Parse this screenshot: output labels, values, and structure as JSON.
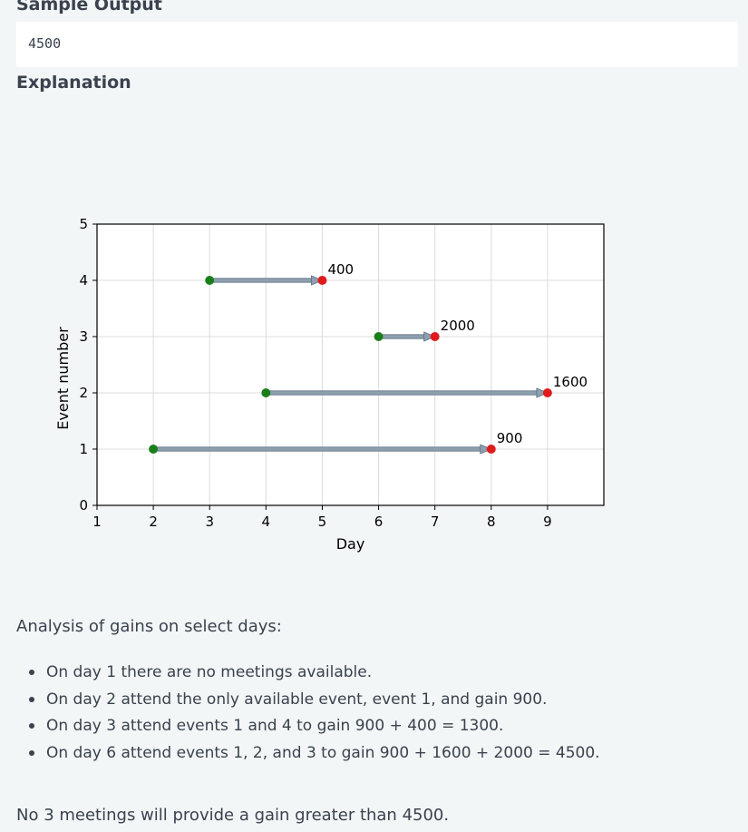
{
  "sample_output": {
    "heading": "Sample Output",
    "value": "4500"
  },
  "explanation": {
    "heading": "Explanation"
  },
  "chart_data": {
    "type": "scatter",
    "xlabel": "Day",
    "ylabel": "Event number",
    "xlim": [
      1,
      10
    ],
    "ylim": [
      0,
      5
    ],
    "xticks": [
      1,
      2,
      3,
      4,
      5,
      6,
      7,
      8,
      9
    ],
    "yticks": [
      0,
      1,
      2,
      3,
      4,
      5
    ],
    "grid": true,
    "events": [
      {
        "event": 1,
        "start": 2,
        "end": 8,
        "label": "900"
      },
      {
        "event": 2,
        "start": 4,
        "end": 9,
        "label": "1600"
      },
      {
        "event": 3,
        "start": 6,
        "end": 7,
        "label": "2000"
      },
      {
        "event": 4,
        "start": 3,
        "end": 5,
        "label": "400"
      }
    ],
    "colors": {
      "start": "#1a7f1a",
      "end": "#e01b1b",
      "arrow": "#8e9fb0",
      "grid": "#dcdcdc"
    }
  },
  "analysis": {
    "intro": "Analysis of gains on select days:",
    "items": [
      "On day 1 there are no meetings available.",
      "On day 2 attend the only available event, event 1, and gain 900.",
      "On day 3 attend events 1 and 4 to gain 900 + 400 = 1300.",
      "On day 6 attend events 1, 2, and 3 to gain 900 + 1600 + 2000 = 4500."
    ],
    "conclusion": "No 3 meetings will provide a gain greater than 4500."
  }
}
